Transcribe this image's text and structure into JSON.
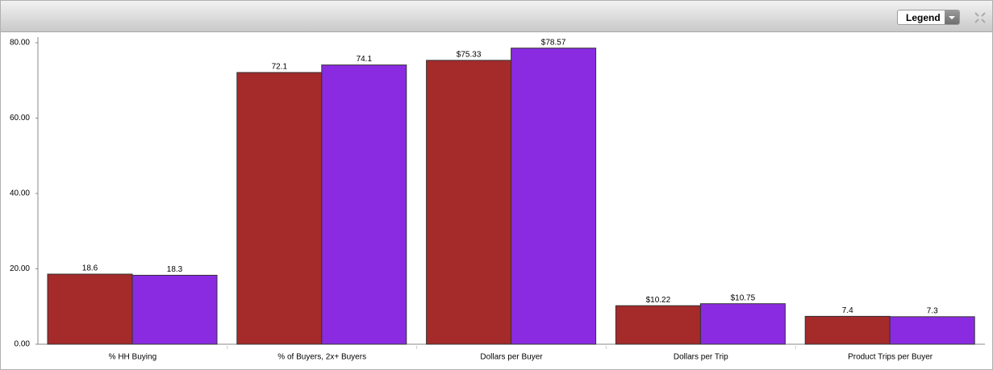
{
  "header": {
    "legend_button": "Legend"
  },
  "chart_data": {
    "type": "bar",
    "categories": [
      "% HH Buying",
      "% of Buyers, 2x+ Buyers",
      "Dollars per Buyer",
      "Dollars per Trip",
      "Product Trips per Buyer"
    ],
    "series": [
      {
        "color": "#a52a2a",
        "values": [
          18.6,
          72.1,
          75.33,
          10.22,
          7.4
        ],
        "value_labels": [
          "18.6",
          "72.1",
          "$75.33",
          "$10.22",
          "7.4"
        ]
      },
      {
        "color": "#8a2be2",
        "values": [
          18.3,
          74.1,
          78.57,
          10.75,
          7.3
        ],
        "value_labels": [
          "18.3",
          "74.1",
          "$78.57",
          "$10.75",
          "7.3"
        ]
      }
    ],
    "ylim": [
      0,
      81.5
    ],
    "yticks": [
      {
        "value": 0,
        "label": "0.00"
      },
      {
        "value": 20,
        "label": "20.00"
      },
      {
        "value": 40,
        "label": "40.00"
      },
      {
        "value": 60,
        "label": "60.00"
      },
      {
        "value": 80,
        "label": "80.00"
      }
    ]
  }
}
